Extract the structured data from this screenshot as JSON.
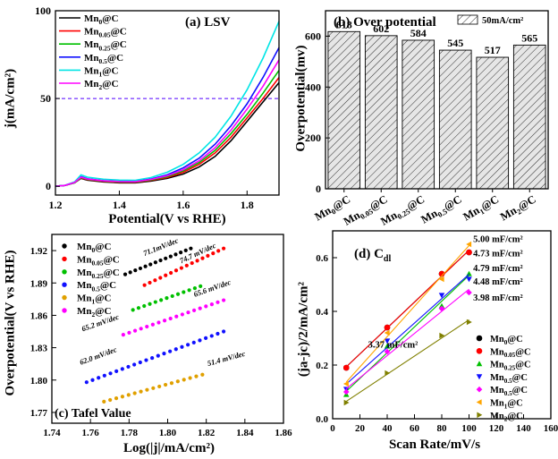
{
  "colors": {
    "Mn0": "#000000",
    "Mn005": "#ff0000",
    "Mn025": "#00c000",
    "Mn05": "#1010ff",
    "Mn1": "#00e5e5",
    "Mn2": "#ff00ff",
    "tafel_Mn1": "#e0a000",
    "cdl_Mn1": "#ffa500",
    "cdl_Mn2": "#808000",
    "ref_line": "#5000ff"
  },
  "chart_data": [
    {
      "id": "a",
      "type": "line",
      "title": "(a) LSV",
      "xlabel": "Potential(V vs RHE)",
      "ylabel": "j(mA/cm²)",
      "xlim": [
        1.2,
        1.9
      ],
      "ylim": [
        -5,
        100
      ],
      "xticks": [
        1.2,
        1.4,
        1.6,
        1.8
      ],
      "yticks": [
        0,
        50,
        100
      ],
      "reference_line_y": 50,
      "legend_position": "top-left",
      "series": [
        {
          "name": "Mn0@C",
          "base": "Mn",
          "sub": "0",
          "color": "Mn0",
          "x": [
            1.2,
            1.23,
            1.26,
            1.28,
            1.3,
            1.35,
            1.4,
            1.45,
            1.5,
            1.55,
            1.6,
            1.65,
            1.7,
            1.75,
            1.8,
            1.85,
            1.9
          ],
          "y": [
            0,
            0.5,
            2,
            4.5,
            3.5,
            2.5,
            2,
            2,
            3,
            4.5,
            7,
            11,
            17,
            26,
            37,
            48,
            59
          ]
        },
        {
          "name": "Mn0.05@C",
          "base": "Mn",
          "sub": "0.05",
          "color": "Mn005",
          "x": [
            1.2,
            1.23,
            1.26,
            1.28,
            1.3,
            1.35,
            1.4,
            1.45,
            1.5,
            1.55,
            1.6,
            1.65,
            1.7,
            1.75,
            1.8,
            1.85,
            1.9
          ],
          "y": [
            0,
            0.5,
            2,
            4.8,
            3.8,
            2.8,
            2.3,
            2.3,
            3.4,
            5,
            8,
            12.5,
            19,
            28,
            39,
            50,
            62
          ]
        },
        {
          "name": "Mn0.25@C",
          "base": "Mn",
          "sub": "0.25",
          "color": "Mn025",
          "x": [
            1.2,
            1.23,
            1.26,
            1.28,
            1.3,
            1.35,
            1.4,
            1.45,
            1.5,
            1.55,
            1.6,
            1.65,
            1.7,
            1.75,
            1.8,
            1.85,
            1.9
          ],
          "y": [
            0,
            0.5,
            2,
            5,
            4,
            3,
            2.5,
            2.5,
            3.7,
            5.5,
            8.8,
            13.5,
            20.5,
            30,
            41,
            53,
            66
          ]
        },
        {
          "name": "Mn0.5@C",
          "base": "Mn",
          "sub": "0.5",
          "color": "Mn05",
          "x": [
            1.2,
            1.23,
            1.26,
            1.28,
            1.3,
            1.35,
            1.4,
            1.45,
            1.5,
            1.55,
            1.6,
            1.65,
            1.7,
            1.75,
            1.8,
            1.85,
            1.9
          ],
          "y": [
            0,
            0.5,
            2.2,
            5.5,
            4.3,
            3.2,
            2.8,
            2.8,
            4.2,
            6.5,
            10.5,
            16,
            24,
            34.5,
            47,
            62,
            79
          ]
        },
        {
          "name": "Mn1@C",
          "base": "Mn",
          "sub": "1",
          "color": "Mn1",
          "x": [
            1.2,
            1.23,
            1.26,
            1.28,
            1.3,
            1.35,
            1.4,
            1.45,
            1.5,
            1.55,
            1.6,
            1.65,
            1.7,
            1.75,
            1.8,
            1.85,
            1.9
          ],
          "y": [
            0,
            0.6,
            2.5,
            6.5,
            5.2,
            4,
            3.5,
            3.4,
            5,
            8,
            12.5,
            19,
            28,
            40,
            55,
            73,
            94
          ]
        },
        {
          "name": "Mn2@C",
          "base": "Mn",
          "sub": "2",
          "color": "Mn2",
          "x": [
            1.2,
            1.23,
            1.26,
            1.28,
            1.3,
            1.35,
            1.4,
            1.45,
            1.5,
            1.55,
            1.6,
            1.65,
            1.7,
            1.75,
            1.8,
            1.85,
            1.9
          ],
          "y": [
            0,
            0.5,
            2.2,
            5.2,
            4.1,
            3.1,
            2.7,
            2.6,
            3.9,
            6,
            9.5,
            14.5,
            22,
            32,
            44,
            57,
            72
          ]
        }
      ]
    },
    {
      "id": "b",
      "type": "bar",
      "title": "(b) Over potential",
      "legend": "50mA/cm²",
      "legend_position": "top-right",
      "ylabel": "Overpotential(mv)",
      "ylim": [
        0,
        700
      ],
      "yticks": [
        0,
        200,
        400,
        600
      ],
      "categories": [
        "Mn0@C",
        "Mn0.05@C",
        "Mn0.25@C",
        "Mn0.5@C",
        "Mn1@C",
        "Mn2@C"
      ],
      "category_subs": [
        "0",
        "0.05",
        "0.25",
        "0.5",
        "1",
        "2"
      ],
      "values": [
        618,
        602,
        584,
        545,
        517,
        565
      ],
      "data_labels": [
        "618",
        "602",
        "584",
        "545",
        "517",
        "565"
      ]
    },
    {
      "id": "c",
      "type": "scatter",
      "title": "(c) Tafel Value",
      "xlabel": "Log(|j|/mA/cm²)",
      "ylabel": "Overpotential(V vs RHE)",
      "xlim": [
        1.74,
        1.86
      ],
      "ylim": [
        1.76,
        1.935
      ],
      "xticks": [
        "1.74",
        "1.76",
        "1.78",
        "1.80",
        "1.82",
        "1.84",
        "1.86"
      ],
      "yticks": [
        "1.77",
        "1.80",
        "1.83",
        "1.86",
        "1.89",
        "1.92"
      ],
      "legend_position": "top-left",
      "series": [
        {
          "name": "Mn0@C",
          "base": "Mn",
          "sub": "0",
          "color": "Mn0",
          "x0": 1.778,
          "x1": 1.812,
          "y0": 1.898,
          "y1": 1.922,
          "n": 14,
          "slope_label": "71.1mV/dec",
          "label_x": 1.788,
          "label_y": 1.915
        },
        {
          "name": "Mn0.05@C",
          "base": "Mn",
          "sub": "0.05",
          "color": "Mn005",
          "x0": 1.788,
          "x1": 1.829,
          "y0": 1.888,
          "y1": 1.922,
          "n": 16,
          "slope_label": "74.7 mV/dec",
          "label_x": 1.807,
          "label_y": 1.908
        },
        {
          "name": "Mn0.25@C",
          "base": "Mn",
          "sub": "0.25",
          "color": "Mn025",
          "x0": 1.782,
          "x1": 1.817,
          "y0": 1.865,
          "y1": 1.887,
          "n": 13,
          "slope_label": "65.6 mV/dec",
          "label_x": 1.814,
          "label_y": 1.877
        },
        {
          "name": "Mn0.5@C",
          "base": "Mn",
          "sub": "0.5",
          "color": "Mn05",
          "x0": 1.758,
          "x1": 1.829,
          "y0": 1.798,
          "y1": 1.845,
          "n": 24,
          "slope_label": "62.0 mV/dec",
          "label_x": 1.755,
          "label_y": 1.814
        },
        {
          "name": "Mn1@C",
          "base": "Mn",
          "sub": "1",
          "color": "tafel_Mn1",
          "x0": 1.767,
          "x1": 1.818,
          "y0": 1.78,
          "y1": 1.805,
          "n": 17,
          "slope_label": "51.4 mV/dec",
          "label_x": 1.821,
          "label_y": 1.813
        },
        {
          "name": "Mn2@C",
          "base": "Mn",
          "sub": "2",
          "color": "Mn2",
          "x0": 1.777,
          "x1": 1.829,
          "y0": 1.842,
          "y1": 1.874,
          "n": 18,
          "slope_label": "65.2 mV/dec",
          "label_x": 1.756,
          "label_y": 1.845
        }
      ]
    },
    {
      "id": "d",
      "type": "scatter",
      "title": "(d) Cdl",
      "title_base": "(d) C",
      "title_sub": "dl",
      "xlabel": "Scan Rate/mV/s",
      "ylabel": "(ja-jc)/2/mA/cm²",
      "xlim": [
        0,
        160
      ],
      "ylim": [
        0,
        0.7
      ],
      "xticks": [
        "0",
        "20",
        "40",
        "60",
        "80",
        "100",
        "120",
        "140",
        "160"
      ],
      "yticks": [
        "0.0",
        "0.2",
        "0.4",
        "0.6"
      ],
      "x": [
        10,
        40,
        80,
        100
      ],
      "legend_position": "right",
      "series": [
        {
          "name": "Mn0@C",
          "base": "Mn",
          "sub": "0",
          "color": "Mn0",
          "marker": "circle",
          "y": [
            0.19,
            0.34,
            0.54,
            0.62
          ],
          "cdl": null
        },
        {
          "name": "Mn0.05@C",
          "base": "Mn",
          "sub": "0.05",
          "color": "Mn005",
          "marker": "circle",
          "y": [
            0.19,
            0.34,
            0.54,
            0.62
          ],
          "cdl": "4.73 mF/cm²"
        },
        {
          "name": "Mn0.25@C",
          "base": "Mn",
          "sub": "0.25",
          "color": "Mn025",
          "marker": "triangle-up",
          "y": [
            0.09,
            0.27,
            0.42,
            0.54
          ],
          "cdl": "4.79 mF/cm²"
        },
        {
          "name": "Mn0.5@C",
          "base": "Mn",
          "sub": "0.5",
          "color": "Mn05",
          "marker": "triangle-down",
          "y": [
            0.11,
            0.29,
            0.46,
            0.52
          ],
          "cdl": "4.48 mF/cm²"
        },
        {
          "name": "Mn0.5@C",
          "base": "Mn",
          "sub": "0.5",
          "color": "Mn2",
          "marker": "diamond",
          "y": [
            0.1,
            0.25,
            0.41,
            0.47
          ],
          "cdl": "3.98 mF/cm²"
        },
        {
          "name": "Mn1@C",
          "base": "Mn",
          "sub": "1",
          "color": "cdl_Mn1",
          "marker": "triangle-left",
          "y": [
            0.13,
            0.32,
            0.52,
            0.65
          ],
          "cdl": "5.00 mF/cm²"
        },
        {
          "name": "Mn2@C",
          "base": "Mn",
          "sub": "2",
          "color": "cdl_Mn2",
          "marker": "triangle-right",
          "y": [
            0.06,
            0.17,
            0.31,
            0.36
          ],
          "cdl": "3.37 mF/cm²"
        }
      ]
    }
  ]
}
